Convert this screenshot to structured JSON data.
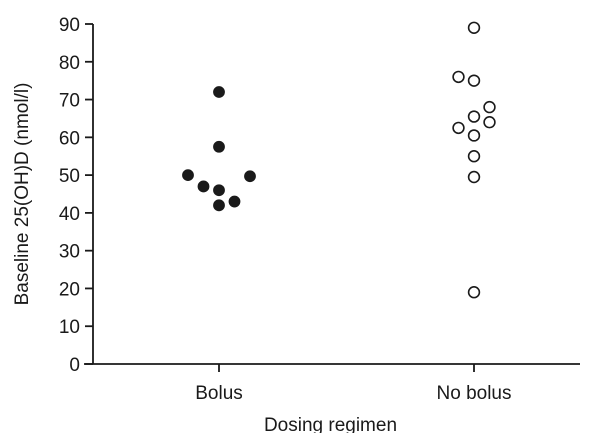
{
  "chart_data": {
    "type": "scatter",
    "xlabel": "Dosing regimen",
    "ylabel": "Baseline 25(OH)D (nmol/l)",
    "categories": [
      "Bolus",
      "No bolus"
    ],
    "ylim": [
      0,
      90
    ],
    "yticks": [
      0,
      10,
      20,
      30,
      40,
      50,
      60,
      70,
      80,
      90
    ],
    "grid": false,
    "series": [
      {
        "category": "Bolus",
        "marker": "filled-circle",
        "color": "#1a1a1a",
        "points": [
          {
            "offset": 0,
            "y": 72
          },
          {
            "offset": 0,
            "y": 57.5
          },
          {
            "offset": -1,
            "y": 50
          },
          {
            "offset": 1,
            "y": 49.7
          },
          {
            "offset": -0.5,
            "y": 47
          },
          {
            "offset": 0,
            "y": 46
          },
          {
            "offset": 0.5,
            "y": 43
          },
          {
            "offset": 0,
            "y": 42
          }
        ]
      },
      {
        "category": "No bolus",
        "marker": "open-circle",
        "color": "#1a1a1a",
        "points": [
          {
            "offset": 0,
            "y": 89
          },
          {
            "offset": -0.5,
            "y": 76
          },
          {
            "offset": 0,
            "y": 75
          },
          {
            "offset": 0.5,
            "y": 68
          },
          {
            "offset": 0,
            "y": 65.5
          },
          {
            "offset": 0.5,
            "y": 64
          },
          {
            "offset": -0.5,
            "y": 62.5
          },
          {
            "offset": 0,
            "y": 60.5
          },
          {
            "offset": 0,
            "y": 55
          },
          {
            "offset": 0,
            "y": 49.5
          },
          {
            "offset": 0,
            "y": 19
          }
        ]
      }
    ]
  }
}
